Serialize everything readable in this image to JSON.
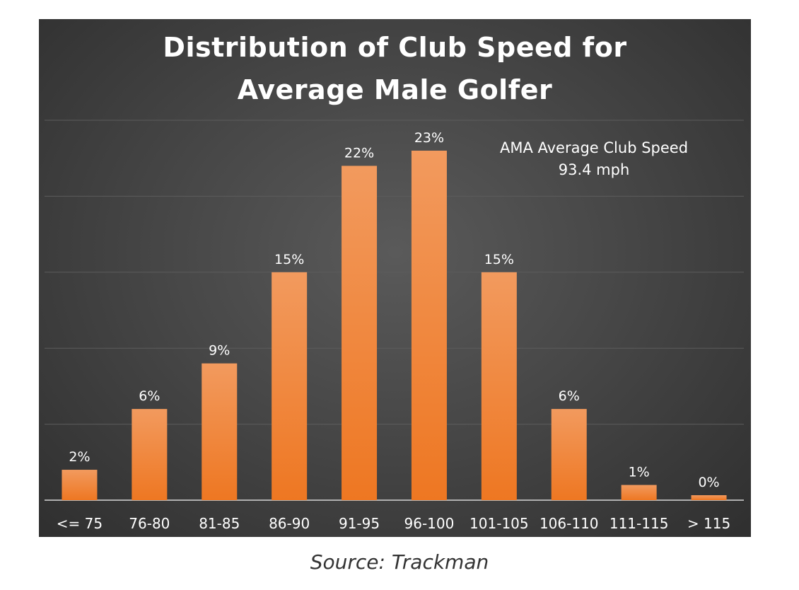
{
  "chart_data": {
    "type": "bar",
    "title_line1": "Distribution of Club Speed for",
    "title_line2": "Average Male Golfer",
    "categories": [
      "<= 75",
      "76-80",
      "81-85",
      "86-90",
      "91-95",
      "96-100",
      "101-105",
      "106-110",
      "111-115",
      "> 115"
    ],
    "values": [
      2,
      6,
      9,
      15,
      22,
      23,
      15,
      6,
      1,
      0
    ],
    "value_labels": [
      "2%",
      "6%",
      "9%",
      "15%",
      "22%",
      "23%",
      "15%",
      "6%",
      "1%",
      "0%"
    ],
    "ylim": [
      0,
      25
    ],
    "grid": true,
    "xlabel": "",
    "ylabel": "",
    "annotation_line1": "AMA Average Club Speed",
    "annotation_line2": "93.4 mph",
    "colors": {
      "bar_top": "#f29a5e",
      "bar_bottom": "#ee7722",
      "axis": "#b0b0b0",
      "grid": "#5c5c5c"
    }
  },
  "caption": "Source: Trackman"
}
